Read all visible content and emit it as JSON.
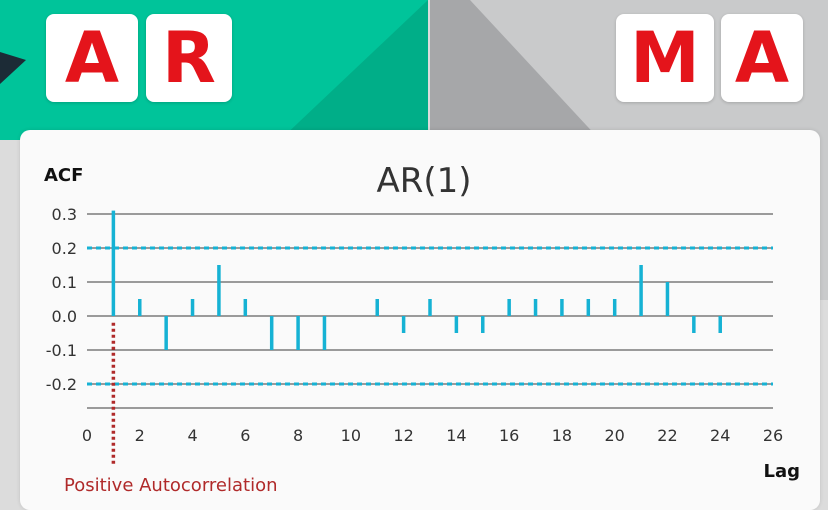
{
  "header": {
    "left_letters": [
      "A",
      "R"
    ],
    "right_letters": [
      "M",
      "A"
    ]
  },
  "colors": {
    "left_panel": "#00c49a",
    "letter": "#e4141b",
    "stem": "#16b2d4",
    "confidence_band": "#16b2d4",
    "annotation": "#b02a2a"
  },
  "chart_data": {
    "type": "bar",
    "title": "AR(1)",
    "ylabel": "ACF",
    "xlabel": "Lag",
    "xlim": [
      0,
      26
    ],
    "ylim": [
      -0.25,
      0.3
    ],
    "x_ticks": [
      0,
      2,
      4,
      6,
      8,
      10,
      12,
      14,
      16,
      18,
      20,
      22,
      24,
      26
    ],
    "y_ticks": [
      {
        "value": 0.3,
        "label": "0.3"
      },
      {
        "value": 0.2,
        "label": "0.2"
      },
      {
        "value": 0.1,
        "label": "0.1"
      },
      {
        "value": 0.0,
        "label": "0.0"
      },
      {
        "value": -0.1,
        "label": "-0.1"
      },
      {
        "value": -0.2,
        "label": "-0.2"
      }
    ],
    "grid": true,
    "confidence_band": [
      0.2,
      -0.2
    ],
    "lags": [
      1,
      2,
      3,
      4,
      5,
      6,
      7,
      8,
      9,
      11,
      12,
      13,
      14,
      15,
      16,
      17,
      18,
      19,
      20,
      21,
      22,
      23,
      24
    ],
    "values": [
      0.31,
      0.05,
      -0.1,
      0.05,
      0.15,
      0.05,
      -0.1,
      -0.1,
      -0.1,
      0.05,
      -0.05,
      0.05,
      -0.05,
      -0.05,
      0.05,
      0.05,
      0.05,
      0.05,
      0.05,
      0.15,
      0.1,
      -0.05,
      -0.05
    ],
    "annotation": {
      "lag": 1,
      "text": "Positive Autocorrelation"
    }
  }
}
